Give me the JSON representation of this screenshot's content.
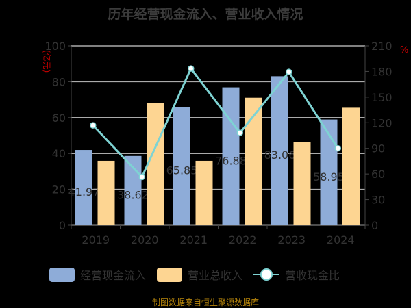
{
  "chart_data": {
    "type": "bar",
    "title": "历年经营现金流入、营业收入情况",
    "ylabel_left": "亿元",
    "ylabel_right": "%",
    "categories": [
      "2019",
      "2020",
      "2021",
      "2022",
      "2023",
      "2024"
    ],
    "ylim_left": [
      0,
      100
    ],
    "yticks_left": [
      0,
      20,
      40,
      60,
      80,
      100
    ],
    "ylim_right": [
      0,
      210
    ],
    "yticks_right": [
      0,
      30,
      60,
      90,
      120,
      150,
      180,
      210
    ],
    "grid": true,
    "legend_position": "bottom",
    "series": [
      {
        "name": "经营现金流入",
        "type": "bar",
        "axis": "left",
        "color": "#8eacd8",
        "values": [
          41.97,
          38.62,
          65.85,
          76.88,
          83.06,
          58.95
        ],
        "labels": [
          "41.97",
          "38.62",
          "65.85",
          "76.88",
          "83.06",
          "58.95"
        ]
      },
      {
        "name": "营业总收入",
        "type": "bar",
        "axis": "left",
        "color": "#fdd592",
        "values": [
          35.9,
          68.3,
          35.9,
          71.1,
          46.3,
          65.5
        ]
      },
      {
        "name": "营收现金比",
        "type": "line",
        "axis": "right",
        "color": "#7ed3d3",
        "values": [
          116.9,
          56.5,
          183.4,
          108.1,
          179.4,
          90.0
        ]
      }
    ]
  },
  "footer": "制图数据来自恒生聚源数据库"
}
